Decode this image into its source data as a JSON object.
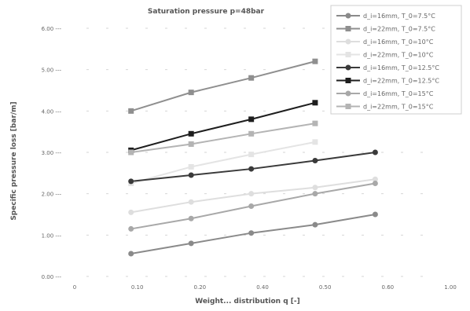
{
  "chart_data": {
    "type": "line",
    "title": "Saturation pressure p=48bar",
    "xlabel": "Weight... distribution q [-]",
    "ylabel": "Specific pressure loss [bar/m]",
    "ylim": [
      0.0,
      6.0
    ],
    "xlim": [
      0,
      1
    ],
    "y_ticks": [
      "0.00 ---",
      "1.00 ---",
      "2.00 ---",
      "3.00 ---",
      "4.00 ---",
      "5.00 ---",
      "6.00 ---"
    ],
    "x_ticks": [
      "0",
      "0.10",
      "0.20",
      "0.40",
      "0.50",
      "0.60",
      "1.00"
    ],
    "grid": true,
    "legend_position": "top-right",
    "series": [
      {
        "name": "d_i=16mm, T_0=7.5°C",
        "color": "#8a8a8a",
        "marker": "circle",
        "x": [
          0.15,
          0.31,
          0.47,
          0.64,
          0.8
        ],
        "y": [
          0.55,
          0.8,
          1.05,
          1.25,
          1.5
        ]
      },
      {
        "name": "d_i=22mm, T_0=7.5°C",
        "color": "#8f8f8f",
        "marker": "square",
        "x": [
          0.15,
          0.31,
          0.47,
          0.64
        ],
        "y": [
          4.0,
          4.45,
          4.8,
          5.2
        ]
      },
      {
        "name": "d_i=16mm, T_0=10°C",
        "color": "#dedede",
        "marker": "circle",
        "x": [
          0.15,
          0.31,
          0.47,
          0.64,
          0.8
        ],
        "y": [
          1.55,
          1.8,
          2.0,
          2.15,
          2.35
        ]
      },
      {
        "name": "d_i=22mm, T_0=10°C",
        "color": "#e4e4e4",
        "marker": "square",
        "x": [
          0.15,
          0.31,
          0.47,
          0.64
        ],
        "y": [
          2.25,
          2.65,
          2.95,
          3.25
        ]
      },
      {
        "name": "d_i=16mm, T_0=12.5°C",
        "color": "#3a3a3a",
        "marker": "circle",
        "x": [
          0.15,
          0.31,
          0.47,
          0.64,
          0.8
        ],
        "y": [
          2.3,
          2.45,
          2.6,
          2.8,
          3.0
        ]
      },
      {
        "name": "d_i=22mm, T_0=12.5°C",
        "color": "#1e1e1e",
        "marker": "square",
        "x": [
          0.15,
          0.31,
          0.47,
          0.64
        ],
        "y": [
          3.05,
          3.45,
          3.8,
          4.2
        ]
      },
      {
        "name": "d_i=16mm, T_0=15°C",
        "color": "#a8a8a8",
        "marker": "circle",
        "x": [
          0.15,
          0.31,
          0.47,
          0.64,
          0.8
        ],
        "y": [
          1.15,
          1.4,
          1.7,
          2.0,
          2.25
        ]
      },
      {
        "name": "d_i=22mm, T_0=15°C",
        "color": "#b4b4b4",
        "marker": "square",
        "x": [
          0.15,
          0.31,
          0.47,
          0.64
        ],
        "y": [
          3.0,
          3.2,
          3.45,
          3.7
        ]
      }
    ]
  }
}
